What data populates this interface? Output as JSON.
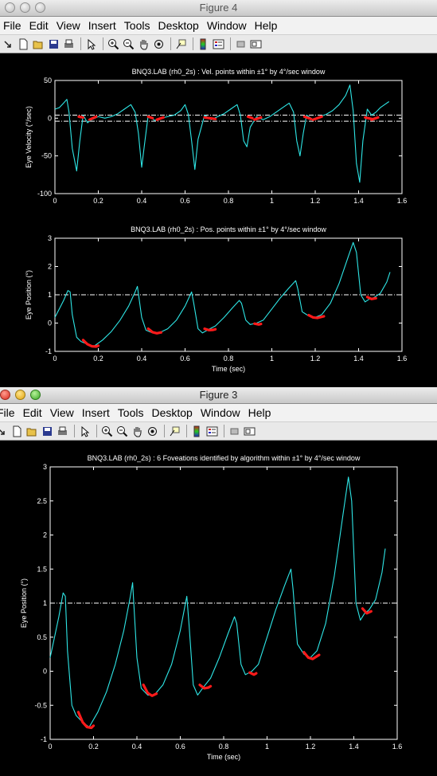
{
  "windows": [
    {
      "title": "Figure 4",
      "menu": [
        "File",
        "Edit",
        "View",
        "Insert",
        "Tools",
        "Desktop",
        "Window",
        "Help"
      ]
    },
    {
      "title": "Figure 3",
      "menu": [
        "File",
        "Edit",
        "View",
        "Insert",
        "Tools",
        "Desktop",
        "Window",
        "Help"
      ]
    }
  ],
  "chart_data": [
    {
      "type": "line",
      "title": "BNQ3.LAB (rh0_2s) : Vel. points within ±1° by 4°/sec window",
      "xlabel": "",
      "ylabel": "Eye Velocity (°/sec)",
      "xlim": [
        0,
        1.6
      ],
      "ylim": [
        -100,
        50
      ],
      "xticks": [
        "0",
        "0.2",
        "0.4",
        "0.6",
        "0.8",
        "1",
        "1.2",
        "1.4",
        "1.6"
      ],
      "yticks": [
        "-100",
        "-50",
        "0",
        "50"
      ],
      "reference_lines": [
        4,
        -4
      ],
      "series": [
        {
          "color": "#2ee6e6",
          "x": [
            0,
            0.02,
            0.04,
            0.055,
            0.065,
            0.08,
            0.1,
            0.115,
            0.13,
            0.15,
            0.17,
            0.2,
            0.23,
            0.26,
            0.29,
            0.32,
            0.35,
            0.37,
            0.385,
            0.4,
            0.415,
            0.43,
            0.46,
            0.49,
            0.52,
            0.55,
            0.58,
            0.6,
            0.615,
            0.63,
            0.645,
            0.66,
            0.69,
            0.72,
            0.75,
            0.78,
            0.81,
            0.84,
            0.855,
            0.87,
            0.885,
            0.9,
            0.93,
            0.96,
            0.99,
            1.02,
            1.05,
            1.08,
            1.1,
            1.115,
            1.13,
            1.145,
            1.16,
            1.19,
            1.22,
            1.25,
            1.28,
            1.31,
            1.34,
            1.36,
            1.375,
            1.39,
            1.405,
            1.42,
            1.44,
            1.46,
            1.48,
            1.5,
            1.52,
            1.54
          ],
          "y": [
            12,
            14,
            20,
            25,
            8,
            -40,
            -70,
            -30,
            4,
            -6,
            -2,
            2,
            0,
            2,
            6,
            12,
            18,
            8,
            -20,
            -65,
            -30,
            4,
            -3,
            0,
            2,
            4,
            10,
            18,
            5,
            -30,
            -68,
            -28,
            4,
            -2,
            2,
            6,
            12,
            18,
            4,
            -30,
            -38,
            -12,
            2,
            -2,
            2,
            8,
            14,
            20,
            8,
            -30,
            -50,
            -20,
            4,
            -2,
            2,
            5,
            10,
            18,
            30,
            44,
            10,
            -60,
            -85,
            -30,
            12,
            4,
            8,
            14,
            18,
            22
          ]
        }
      ],
      "highlight_segments": [
        {
          "x": [
            0.11,
            0.13
          ],
          "y": [
            2,
            1
          ]
        },
        {
          "x": [
            0.16,
            0.19
          ],
          "y": [
            -2,
            2
          ]
        },
        {
          "x": [
            0.43,
            0.45
          ],
          "y": [
            2,
            0
          ]
        },
        {
          "x": [
            0.47,
            0.5
          ],
          "y": [
            -2,
            1
          ]
        },
        {
          "x": [
            0.69,
            0.74
          ],
          "y": [
            1,
            -1
          ]
        },
        {
          "x": [
            0.89,
            0.91
          ],
          "y": [
            2,
            0
          ]
        },
        {
          "x": [
            0.92,
            0.95
          ],
          "y": [
            -2,
            1
          ]
        },
        {
          "x": [
            1.15,
            1.18
          ],
          "y": [
            2,
            -1
          ]
        },
        {
          "x": [
            1.19,
            1.23
          ],
          "y": [
            -2,
            2
          ]
        },
        {
          "x": [
            1.43,
            1.46
          ],
          "y": [
            1,
            -1
          ]
        },
        {
          "x": [
            1.46,
            1.49
          ],
          "y": [
            -2,
            1
          ]
        }
      ]
    },
    {
      "type": "line",
      "title": "BNQ3.LAB (rh0_2s) : Pos. points within ±1° by 4°/sec window",
      "xlabel": "Time (sec)",
      "ylabel": "Eye Position (°)",
      "xlim": [
        0,
        1.6
      ],
      "ylim": [
        -1,
        3
      ],
      "xticks": [
        "0",
        "0.2",
        "0.4",
        "0.6",
        "0.8",
        "1",
        "1.2",
        "1.4",
        "1.6"
      ],
      "yticks": [
        "-1",
        "0",
        "1",
        "2",
        "3"
      ],
      "reference_lines": [
        1
      ],
      "series": [
        {
          "color": "#2ee6e6",
          "x": [
            0,
            0.02,
            0.04,
            0.06,
            0.07,
            0.08,
            0.1,
            0.12,
            0.15,
            0.18,
            0.22,
            0.26,
            0.3,
            0.34,
            0.37,
            0.38,
            0.4,
            0.42,
            0.45,
            0.48,
            0.52,
            0.56,
            0.6,
            0.63,
            0.64,
            0.66,
            0.68,
            0.71,
            0.74,
            0.78,
            0.82,
            0.85,
            0.86,
            0.88,
            0.9,
            0.93,
            0.96,
            1.0,
            1.04,
            1.08,
            1.11,
            1.12,
            1.14,
            1.17,
            1.2,
            1.23,
            1.27,
            1.31,
            1.35,
            1.375,
            1.39,
            1.41,
            1.43,
            1.45,
            1.47,
            1.5,
            1.53,
            1.545
          ],
          "y": [
            0.2,
            0.5,
            0.8,
            1.15,
            1.1,
            0.3,
            -0.5,
            -0.65,
            -0.75,
            -0.82,
            -0.6,
            -0.3,
            0.1,
            0.6,
            1.1,
            1.3,
            0.2,
            -0.25,
            -0.35,
            -0.35,
            -0.2,
            0.1,
            0.6,
            1.1,
            0.7,
            -0.2,
            -0.35,
            -0.22,
            -0.1,
            0.2,
            0.55,
            0.8,
            0.7,
            0.1,
            -0.05,
            0.0,
            0.1,
            0.5,
            0.9,
            1.25,
            1.5,
            1.2,
            0.4,
            0.25,
            0.2,
            0.3,
            0.7,
            1.4,
            2.3,
            2.85,
            2.5,
            1.0,
            0.75,
            0.85,
            0.9,
            1.05,
            1.45,
            1.8
          ]
        }
      ],
      "highlight_segments": [
        {
          "x": [
            0.13,
            0.15,
            0.17,
            0.19,
            0.2
          ],
          "y": [
            -0.6,
            -0.75,
            -0.82,
            -0.83,
            -0.8
          ]
        },
        {
          "x": [
            0.43,
            0.45,
            0.47,
            0.49
          ],
          "y": [
            -0.2,
            -0.32,
            -0.36,
            -0.33
          ]
        },
        {
          "x": [
            0.69,
            0.71,
            0.73,
            0.74
          ],
          "y": [
            -0.2,
            -0.25,
            -0.24,
            -0.22
          ]
        },
        {
          "x": [
            0.92,
            0.94,
            0.95
          ],
          "y": [
            -0.02,
            -0.05,
            -0.03
          ]
        },
        {
          "x": [
            1.17,
            1.19,
            1.21,
            1.24
          ],
          "y": [
            0.28,
            0.2,
            0.18,
            0.24
          ]
        },
        {
          "x": [
            1.44,
            1.46,
            1.48
          ],
          "y": [
            0.92,
            0.85,
            0.88
          ]
        }
      ]
    },
    {
      "type": "line",
      "title": "BNQ3.LAB (rh0_2s) :  6  Foveations identified by algorithm within   ±1° by 4°/sec window",
      "xlabel": "Time (sec)",
      "ylabel": "Eye Position (°)",
      "xlim": [
        0,
        1.6
      ],
      "ylim": [
        -1,
        3
      ],
      "xticks": [
        "0",
        "0.2",
        "0.4",
        "0.6",
        "0.8",
        "1",
        "1.2",
        "1.4",
        "1.6"
      ],
      "yticks": [
        "-1",
        "-0.5",
        "0",
        "0.5",
        "1",
        "1.5",
        "2",
        "2.5",
        "3"
      ],
      "reference_lines": [
        1
      ],
      "series": [
        {
          "color": "#2ee6e6",
          "x": [
            0,
            0.02,
            0.04,
            0.06,
            0.07,
            0.08,
            0.1,
            0.12,
            0.15,
            0.18,
            0.22,
            0.26,
            0.3,
            0.34,
            0.37,
            0.38,
            0.4,
            0.42,
            0.45,
            0.48,
            0.52,
            0.56,
            0.6,
            0.63,
            0.64,
            0.66,
            0.68,
            0.71,
            0.74,
            0.78,
            0.82,
            0.85,
            0.86,
            0.88,
            0.9,
            0.93,
            0.96,
            1.0,
            1.04,
            1.08,
            1.11,
            1.12,
            1.14,
            1.17,
            1.2,
            1.23,
            1.27,
            1.31,
            1.35,
            1.375,
            1.39,
            1.41,
            1.43,
            1.45,
            1.47,
            1.5,
            1.53,
            1.545
          ],
          "y": [
            0.2,
            0.5,
            0.8,
            1.15,
            1.1,
            0.3,
            -0.5,
            -0.65,
            -0.75,
            -0.82,
            -0.6,
            -0.3,
            0.1,
            0.6,
            1.1,
            1.3,
            0.2,
            -0.25,
            -0.35,
            -0.35,
            -0.2,
            0.1,
            0.6,
            1.1,
            0.7,
            -0.2,
            -0.35,
            -0.22,
            -0.1,
            0.2,
            0.55,
            0.8,
            0.7,
            0.1,
            -0.05,
            0.0,
            0.1,
            0.5,
            0.9,
            1.25,
            1.5,
            1.2,
            0.4,
            0.25,
            0.2,
            0.3,
            0.7,
            1.4,
            2.3,
            2.85,
            2.5,
            1.0,
            0.75,
            0.85,
            0.9,
            1.05,
            1.45,
            1.8
          ]
        }
      ],
      "highlight_segments": [
        {
          "x": [
            0.13,
            0.15,
            0.17,
            0.19,
            0.2
          ],
          "y": [
            -0.6,
            -0.75,
            -0.82,
            -0.83,
            -0.8
          ]
        },
        {
          "x": [
            0.43,
            0.45,
            0.47,
            0.49
          ],
          "y": [
            -0.2,
            -0.32,
            -0.36,
            -0.33
          ]
        },
        {
          "x": [
            0.69,
            0.71,
            0.73,
            0.74
          ],
          "y": [
            -0.2,
            -0.25,
            -0.24,
            -0.22
          ]
        },
        {
          "x": [
            0.92,
            0.94,
            0.95
          ],
          "y": [
            -0.02,
            -0.05,
            -0.03
          ]
        },
        {
          "x": [
            1.17,
            1.19,
            1.21,
            1.24
          ],
          "y": [
            0.28,
            0.2,
            0.18,
            0.24
          ]
        },
        {
          "x": [
            1.44,
            1.46,
            1.48
          ],
          "y": [
            0.92,
            0.85,
            0.88
          ]
        }
      ]
    }
  ]
}
